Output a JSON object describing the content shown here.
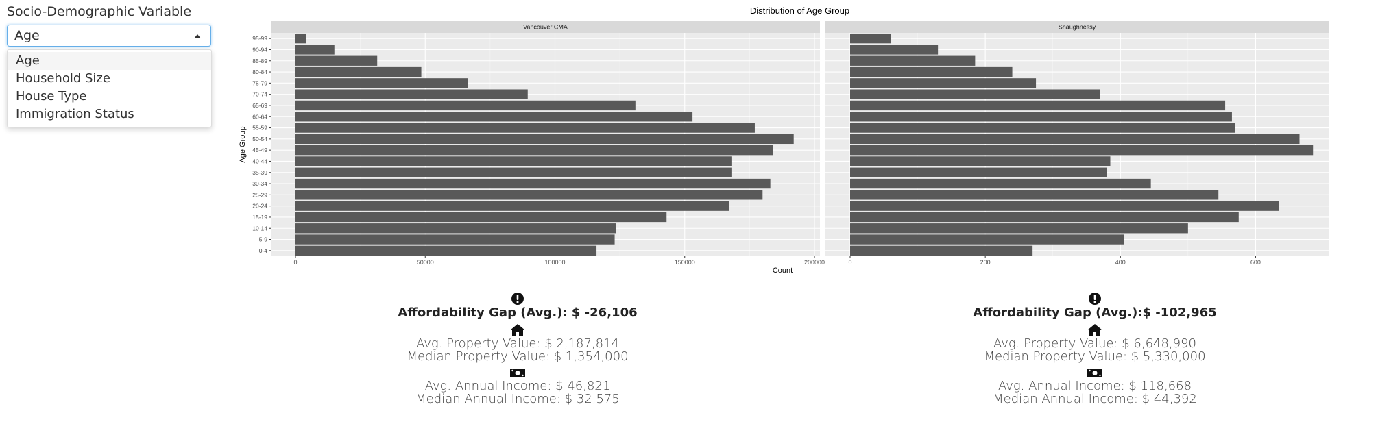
{
  "sidebar": {
    "label": "Socio-Demographic Variable",
    "select_value": "Age",
    "options": [
      "Age",
      "Household Size",
      "House Type",
      "Immigration Status"
    ]
  },
  "chart_data": {
    "type": "bar",
    "orientation": "horizontal",
    "title": "Distribution of Age Group",
    "xlabel": "Count",
    "ylabel": "Age Group",
    "categories": [
      "0-4",
      "5-9",
      "10-14",
      "15-19",
      "20-24",
      "25-29",
      "30-34",
      "35-39",
      "40-44",
      "45-49",
      "50-54",
      "55-59",
      "60-64",
      "65-69",
      "70-74",
      "75-79",
      "80-84",
      "85-89",
      "90-94",
      "95-99"
    ],
    "facets": [
      {
        "name": "Vancouver CMA",
        "xlim": [
          0,
          200000
        ],
        "xticks": [
          0,
          50000,
          100000,
          150000,
          200000
        ],
        "xtick_labels": [
          "0",
          "50000",
          "100000",
          "150000",
          "200000"
        ],
        "values": [
          116000,
          123000,
          123500,
          143000,
          167000,
          180000,
          183000,
          168000,
          168000,
          184000,
          192000,
          177000,
          153000,
          131000,
          89500,
          66500,
          48500,
          31500,
          15000,
          4000
        ]
      },
      {
        "name": "Shaughnessy",
        "xlim": [
          0,
          700
        ],
        "xticks": [
          0,
          200,
          400,
          600
        ],
        "xtick_labels": [
          "0",
          "200",
          "400",
          "600"
        ],
        "values": [
          270,
          405,
          500,
          575,
          635,
          545,
          445,
          380,
          385,
          685,
          665,
          570,
          565,
          555,
          370,
          275,
          240,
          185,
          130,
          60
        ]
      }
    ],
    "colors": {
      "bar": "#595959",
      "panel": "#ebebeb",
      "strip": "#d9d9d9",
      "grid": "#ffffff"
    }
  },
  "stats": [
    {
      "gap": "Affordability Gap (Avg.): $ -26,106",
      "avg_property": "Avg. Property Value: $ 2,187,814",
      "median_property": "Median Property Value: $ 1,354,000",
      "avg_income": "Avg. Annual Income: $ 46,821",
      "median_income": "Median Annual Income: $ 32,575"
    },
    {
      "gap": "Affordability Gap (Avg.):$ -102,965",
      "avg_property": "Avg. Property Value: $ 6,648,990",
      "median_property": "Median Property Value: $ 5,330,000",
      "avg_income": "Avg. Annual Income: $ 118,668",
      "median_income": "Median Annual Income: $ 44,392"
    }
  ],
  "icons": [
    "exclamation-circle-icon",
    "home-icon",
    "money-bill-icon"
  ]
}
